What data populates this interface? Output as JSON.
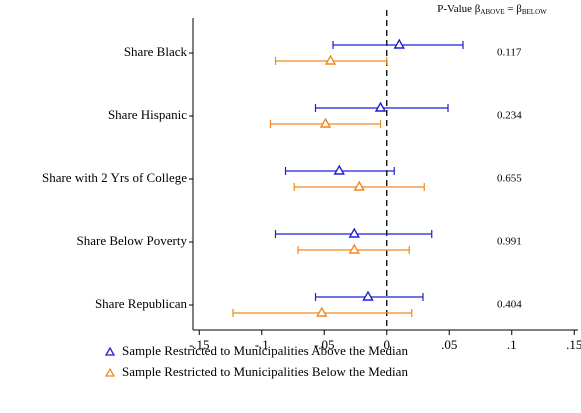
{
  "chart_data": {
    "type": "coefplot",
    "categories": [
      "Share Black",
      "Share Hispanic",
      "Share with 2 Yrs of College",
      "Share Below Poverty",
      "Share Republican"
    ],
    "series": [
      {
        "name": "Sample Restricted to Municipalities Above the Median",
        "color": "#1f1fd6",
        "values": [
          0.01,
          -0.005,
          -0.038,
          -0.026,
          -0.015
        ],
        "lower": [
          -0.043,
          -0.057,
          -0.081,
          -0.089,
          -0.057
        ],
        "upper": [
          0.061,
          0.049,
          0.006,
          0.036,
          0.029
        ]
      },
      {
        "name": "Sample Restricted to Municipalities Below the Median",
        "color": "#f0891e",
        "values": [
          -0.045,
          -0.049,
          -0.022,
          -0.026,
          -0.052
        ],
        "lower": [
          -0.089,
          -0.093,
          -0.074,
          -0.071,
          -0.123
        ],
        "upper": [
          0.0,
          -0.005,
          0.03,
          0.018,
          0.02
        ]
      }
    ],
    "pvalue_header": {
      "prefix": "P-Value β",
      "sub_above": "ABOVE",
      "middle": " = β",
      "sub_below": "BELOW"
    },
    "pvalues": [
      0.117,
      0.234,
      0.655,
      0.991,
      0.404
    ],
    "xlim": [
      -0.155,
      0.153
    ],
    "xticks": [
      {
        "value": -0.15,
        "label": "-.15"
      },
      {
        "value": -0.1,
        "label": "-.1"
      },
      {
        "value": -0.05,
        "label": "-.05"
      },
      0,
      {
        "value": 0.05,
        "label": ".05"
      },
      {
        "value": 0.1,
        "label": ".1"
      },
      {
        "value": 0.15,
        "label": ".15"
      }
    ]
  }
}
